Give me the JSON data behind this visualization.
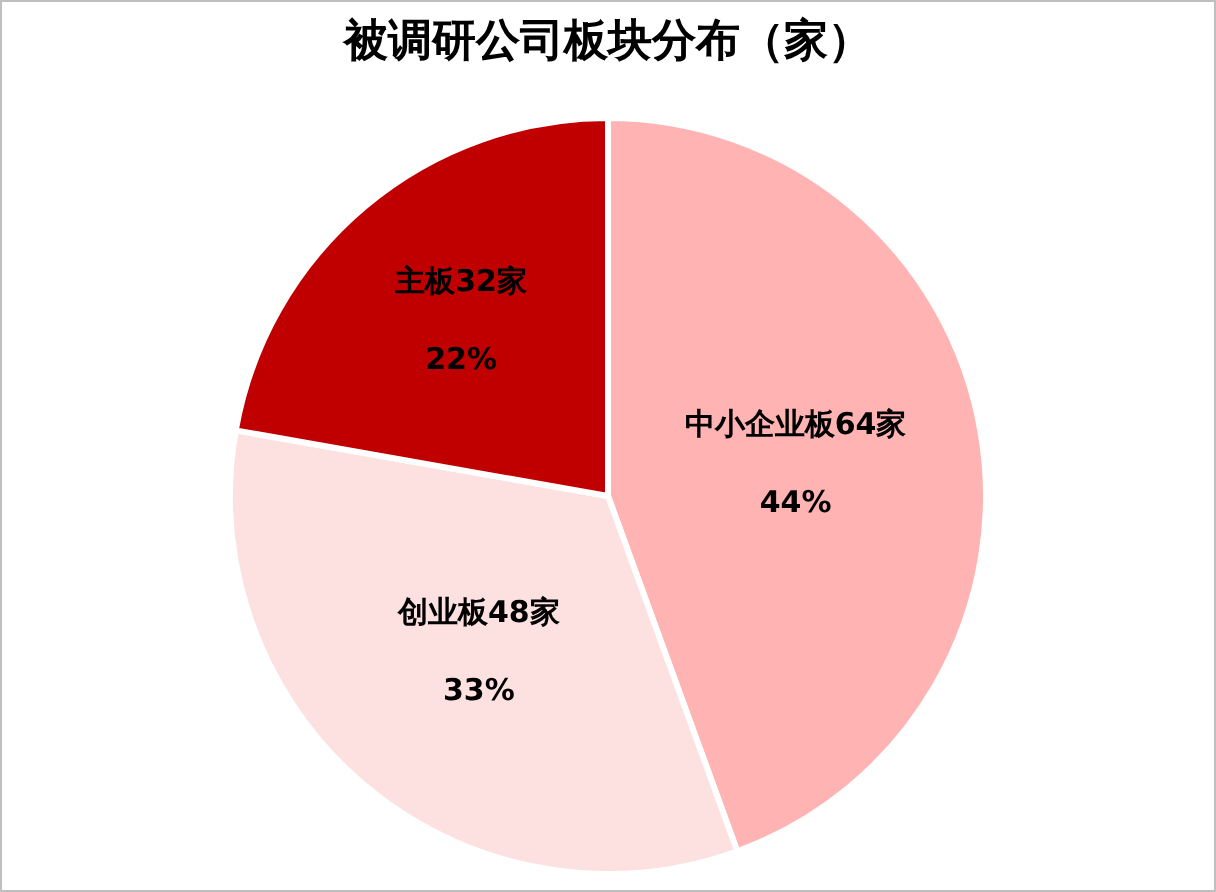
{
  "chart_data": {
    "type": "pie",
    "title": "被调研公司板块分布（家）",
    "categories": [
      "中小企业板64家",
      "创业板48家",
      "主板32家"
    ],
    "values": [
      44,
      33,
      22
    ],
    "value_labels": [
      "44%",
      "33%",
      "22%"
    ],
    "colors": [
      "#ffb3b3",
      "#fde0e0",
      "#c00000"
    ],
    "legend": false
  }
}
